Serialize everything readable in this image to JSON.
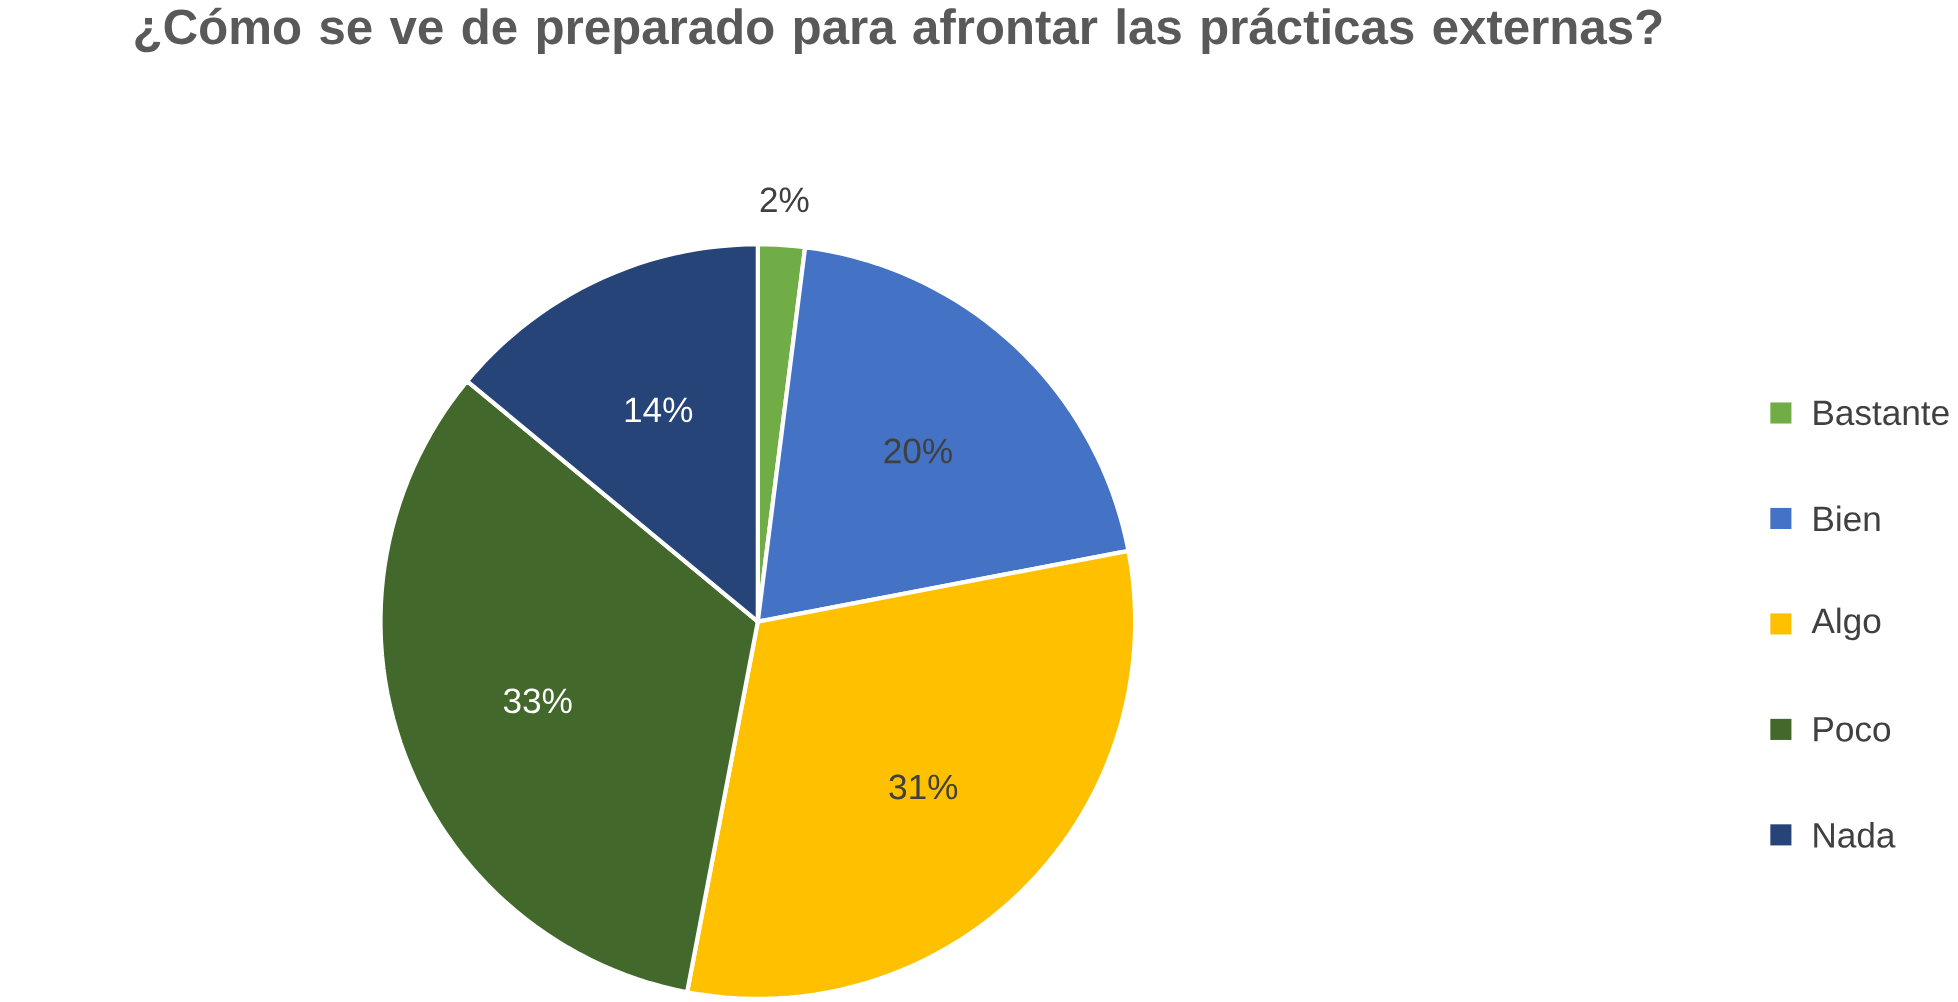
{
  "chart_data": {
    "type": "pie",
    "title": "¿Cómo se ve de preparado para afrontar las prácticas externas?",
    "categories": [
      "Bastante",
      "Bien",
      "Algo",
      "Poco",
      "Nada"
    ],
    "values": [
      2,
      20,
      31,
      33,
      14
    ],
    "colors": [
      "#70ad47",
      "#4472c4",
      "#ffc000",
      "#43682b",
      "#264478"
    ],
    "value_labels": [
      "2%",
      "20%",
      "31%",
      "33%",
      "14%"
    ],
    "legend": "right"
  }
}
